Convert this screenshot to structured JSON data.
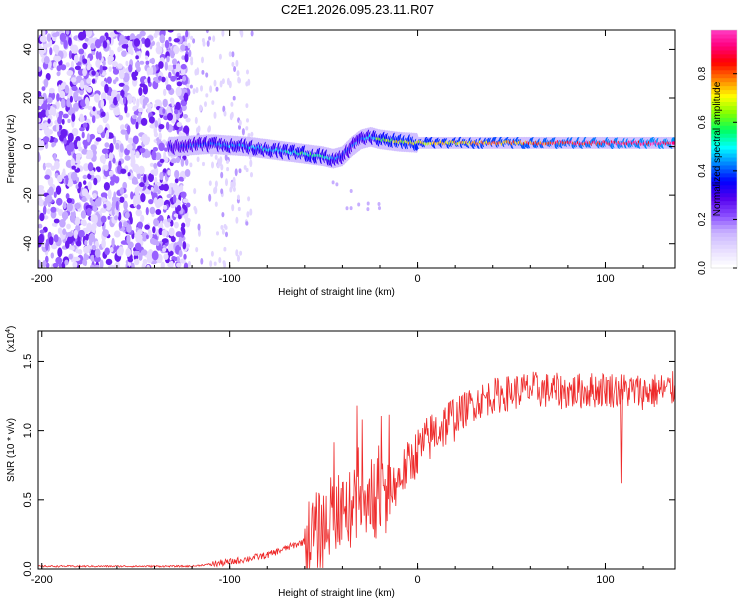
{
  "title": "C2E1.2026.095.23.11.R07",
  "colors": {
    "snr_line": "#ee2a2a",
    "axis": "#000000",
    "background": "#ffffff",
    "colormap": [
      "#ffffff",
      "#e6dcff",
      "#c9b3ff",
      "#8a4dff",
      "#5500ee",
      "#0000ff",
      "#0080ff",
      "#00ffff",
      "#00ff60",
      "#80ff00",
      "#ffff00",
      "#ff8000",
      "#ff0000",
      "#ff0080",
      "#ff44cc"
    ]
  },
  "chart_data": [
    {
      "type": "heatmap",
      "title": "C2E1.2026.095.23.11.R07",
      "xlabel": "Height of straight line (km)",
      "ylabel": "Frequency (Hz)",
      "xlim": [
        -202,
        137
      ],
      "ylim": [
        -50,
        48
      ],
      "x_ticks": [
        -200,
        -100,
        0,
        100
      ],
      "x_tick_labels": [
        "-200",
        "-100",
        "0",
        "100"
      ],
      "y_ticks": [
        -40,
        -20,
        0,
        20,
        40
      ],
      "y_tick_labels": [
        "-40",
        "-20",
        "0",
        "20",
        "40"
      ],
      "colorbar": {
        "label": "Normalized spectral amplitude",
        "range": [
          0,
          0.98
        ],
        "ticks": [
          0.0,
          0.2,
          0.4,
          0.6,
          0.8
        ],
        "tick_labels": [
          "0.0",
          "0.2",
          "0.4",
          "0.6",
          "0.8"
        ]
      },
      "ridge": {
        "description": "doppler ridge frequency (Hz) vs height (km)",
        "x": [
          -130,
          -110,
          -90,
          -70,
          -60,
          -50,
          -45,
          -40,
          -35,
          -30,
          -25,
          -20,
          -10,
          0,
          50,
          100,
          137
        ],
        "freq": [
          0,
          1,
          0,
          -2,
          -3,
          -4,
          -5,
          -4,
          0,
          3,
          4,
          3,
          2,
          1.5,
          1.5,
          1.5,
          1.5
        ],
        "amplitude": [
          0.3,
          0.4,
          0.45,
          0.5,
          0.55,
          0.5,
          0.45,
          0.4,
          0.35,
          0.4,
          0.45,
          0.6,
          0.7,
          0.7,
          0.8,
          0.9,
          0.95
        ]
      },
      "noise_region_xmax": -122,
      "sparse_noise_xmax": -88
    },
    {
      "type": "line",
      "xlabel": "Height of straight line (km)",
      "ylabel": "SNR (10 * v/v)",
      "y_scale_label": "(x10",
      "y_scale_exp": "4",
      "xlim": [
        -202,
        137
      ],
      "ylim": [
        0,
        1.72
      ],
      "x_ticks": [
        -200,
        -100,
        0,
        100
      ],
      "x_tick_labels": [
        "-200",
        "-100",
        "0",
        "100"
      ],
      "y_ticks": [
        0.0,
        0.5,
        1.0,
        1.5
      ],
      "y_tick_labels": [
        "0.0",
        "0.5",
        "1.0",
        "1.5"
      ],
      "series": [
        {
          "name": "SNR",
          "x": [
            -202,
            -180,
            -150,
            -120,
            -100,
            -80,
            -70,
            -60,
            -50,
            -45,
            -40,
            -35,
            -30,
            -25,
            -20,
            -15,
            -10,
            -5,
            0,
            10,
            20,
            30,
            40,
            60,
            80,
            100,
            120,
            137
          ],
          "y": [
            0.02,
            0.02,
            0.02,
            0.02,
            0.05,
            0.1,
            0.15,
            0.2,
            0.3,
            0.4,
            0.45,
            0.5,
            0.55,
            0.55,
            0.5,
            0.55,
            0.65,
            0.75,
            0.85,
            1.0,
            1.1,
            1.2,
            1.25,
            1.3,
            1.28,
            1.3,
            1.28,
            1.3
          ]
        }
      ]
    }
  ]
}
